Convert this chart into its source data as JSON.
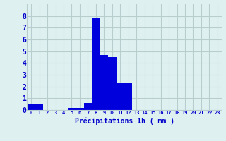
{
  "values": [
    0.5,
    0.5,
    0,
    0,
    0,
    0.2,
    0.2,
    0.6,
    7.8,
    4.7,
    4.5,
    2.3,
    2.3,
    0,
    0,
    0,
    0,
    0,
    0,
    0,
    0,
    0,
    0,
    0
  ],
  "bar_color": "#0000dd",
  "bg_color": "#dff0f0",
  "grid_color": "#b8cece",
  "xlabel": "Précipitations 1h ( mm )",
  "xlabel_color": "#0000cc",
  "tick_color": "#0000cc",
  "ylim": [
    0,
    9
  ],
  "yticks": [
    0,
    1,
    2,
    3,
    4,
    5,
    6,
    7,
    8
  ],
  "num_bars": 24,
  "bar_width": 1.0
}
